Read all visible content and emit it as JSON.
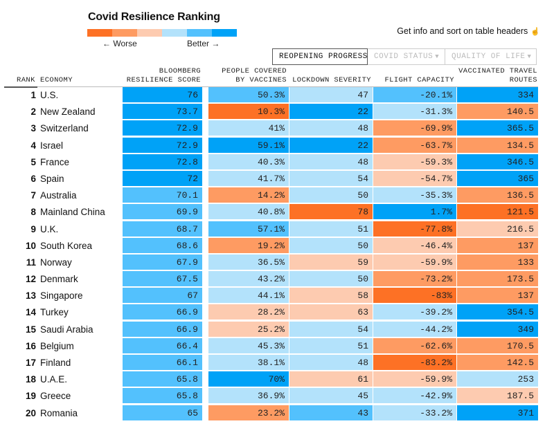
{
  "title": "Covid Resilience Ranking",
  "legend": {
    "colors": [
      "#fd7125",
      "#fe9b62",
      "#fdcbb0",
      "#b3e2fb",
      "#53c1fd",
      "#00a2f7"
    ],
    "worse_label": "← Worse",
    "better_label": "Better →"
  },
  "hint": {
    "text": "Get info and sort on table headers",
    "icon": "pointer-hand-icon"
  },
  "tabs": [
    {
      "label": "REOPENING PROGRESS",
      "active": true
    },
    {
      "label": "COVID STATUS",
      "active": false,
      "icon": "▼"
    },
    {
      "label": "QUALITY OF LIFE",
      "active": false,
      "icon": "▼"
    }
  ],
  "columns": {
    "rank": "RANK",
    "economy": "ECONOMY",
    "score_line1": "BLOOMBERG",
    "score_line2": "RESILIENCE SCORE",
    "vacc_line1": "PEOPLE COVERED",
    "vacc_line2": "BY VACCINES",
    "lockdown": "LOCKDOWN SEVERITY",
    "flight": "FLIGHT CAPACITY",
    "routes_line1": "VACCINATED TRAVEL",
    "routes_line2": "ROUTES"
  },
  "palette": {
    "o3": "#fd7125",
    "o2": "#fe9b62",
    "o1": "#fdcbb0",
    "b1": "#b3e2fb",
    "b2": "#53c1fd",
    "b3": "#00a2f7"
  },
  "rows": [
    {
      "rank": "1",
      "economy": "U.S.",
      "score": "76",
      "score_c": "b3",
      "vacc": "50.3%",
      "vacc_c": "b2",
      "lock": "47",
      "lock_c": "b1",
      "flight": "-20.1%",
      "flight_c": "b2",
      "routes": "334",
      "routes_c": "b3"
    },
    {
      "rank": "2",
      "economy": "New Zealand",
      "score": "73.7",
      "score_c": "b3",
      "vacc": "10.3%",
      "vacc_c": "o3",
      "lock": "22",
      "lock_c": "b3",
      "flight": "-31.3%",
      "flight_c": "b1",
      "routes": "140.5",
      "routes_c": "o2"
    },
    {
      "rank": "3",
      "economy": "Switzerland",
      "score": "72.9",
      "score_c": "b3",
      "vacc": "41%",
      "vacc_c": "b1",
      "lock": "48",
      "lock_c": "b1",
      "flight": "-69.9%",
      "flight_c": "o2",
      "routes": "365.5",
      "routes_c": "b3"
    },
    {
      "rank": "4",
      "economy": "Israel",
      "score": "72.9",
      "score_c": "b3",
      "vacc": "59.1%",
      "vacc_c": "b3",
      "lock": "22",
      "lock_c": "b3",
      "flight": "-63.7%",
      "flight_c": "o2",
      "routes": "134.5",
      "routes_c": "o2"
    },
    {
      "rank": "5",
      "economy": "France",
      "score": "72.8",
      "score_c": "b3",
      "vacc": "40.3%",
      "vacc_c": "b1",
      "lock": "48",
      "lock_c": "b1",
      "flight": "-59.3%",
      "flight_c": "o1",
      "routes": "346.5",
      "routes_c": "b3"
    },
    {
      "rank": "6",
      "economy": "Spain",
      "score": "72",
      "score_c": "b3",
      "vacc": "41.7%",
      "vacc_c": "b1",
      "lock": "54",
      "lock_c": "b1",
      "flight": "-54.7%",
      "flight_c": "o1",
      "routes": "365",
      "routes_c": "b3"
    },
    {
      "rank": "7",
      "economy": "Australia",
      "score": "70.1",
      "score_c": "b2",
      "vacc": "14.2%",
      "vacc_c": "o2",
      "lock": "50",
      "lock_c": "b1",
      "flight": "-35.3%",
      "flight_c": "b1",
      "routes": "136.5",
      "routes_c": "o2"
    },
    {
      "rank": "8",
      "economy": "Mainland China",
      "score": "69.9",
      "score_c": "b2",
      "vacc": "40.8%",
      "vacc_c": "b1",
      "lock": "78",
      "lock_c": "o3",
      "flight": "1.7%",
      "flight_c": "b3",
      "routes": "121.5",
      "routes_c": "o3"
    },
    {
      "rank": "9",
      "economy": "U.K.",
      "score": "68.7",
      "score_c": "b2",
      "vacc": "57.1%",
      "vacc_c": "b2",
      "lock": "51",
      "lock_c": "b1",
      "flight": "-77.8%",
      "flight_c": "o3",
      "routes": "216.5",
      "routes_c": "o1"
    },
    {
      "rank": "10",
      "economy": "South Korea",
      "score": "68.6",
      "score_c": "b2",
      "vacc": "19.2%",
      "vacc_c": "o2",
      "lock": "50",
      "lock_c": "b1",
      "flight": "-46.4%",
      "flight_c": "o1",
      "routes": "137",
      "routes_c": "o2"
    },
    {
      "rank": "11",
      "economy": "Norway",
      "score": "67.9",
      "score_c": "b2",
      "vacc": "36.5%",
      "vacc_c": "b1",
      "lock": "59",
      "lock_c": "o1",
      "flight": "-59.9%",
      "flight_c": "o1",
      "routes": "133",
      "routes_c": "o2"
    },
    {
      "rank": "12",
      "economy": "Denmark",
      "score": "67.5",
      "score_c": "b2",
      "vacc": "43.2%",
      "vacc_c": "b1",
      "lock": "50",
      "lock_c": "b1",
      "flight": "-73.2%",
      "flight_c": "o2",
      "routes": "173.5",
      "routes_c": "o2"
    },
    {
      "rank": "13",
      "economy": "Singapore",
      "score": "67",
      "score_c": "b2",
      "vacc": "44.1%",
      "vacc_c": "b1",
      "lock": "58",
      "lock_c": "o1",
      "flight": "-83%",
      "flight_c": "o3",
      "routes": "137",
      "routes_c": "o2"
    },
    {
      "rank": "14",
      "economy": "Turkey",
      "score": "66.9",
      "score_c": "b2",
      "vacc": "28.2%",
      "vacc_c": "o1",
      "lock": "63",
      "lock_c": "o1",
      "flight": "-39.2%",
      "flight_c": "b1",
      "routes": "354.5",
      "routes_c": "b3"
    },
    {
      "rank": "15",
      "economy": "Saudi Arabia",
      "score": "66.9",
      "score_c": "b2",
      "vacc": "25.2%",
      "vacc_c": "o1",
      "lock": "54",
      "lock_c": "b1",
      "flight": "-44.2%",
      "flight_c": "b1",
      "routes": "349",
      "routes_c": "b3"
    },
    {
      "rank": "16",
      "economy": "Belgium",
      "score": "66.4",
      "score_c": "b2",
      "vacc": "45.3%",
      "vacc_c": "b1",
      "lock": "51",
      "lock_c": "b1",
      "flight": "-62.6%",
      "flight_c": "o2",
      "routes": "170.5",
      "routes_c": "o2"
    },
    {
      "rank": "17",
      "economy": "Finland",
      "score": "66.1",
      "score_c": "b2",
      "vacc": "38.1%",
      "vacc_c": "b1",
      "lock": "48",
      "lock_c": "b1",
      "flight": "-83.2%",
      "flight_c": "o3",
      "routes": "142.5",
      "routes_c": "o2"
    },
    {
      "rank": "18",
      "economy": "U.A.E.",
      "score": "65.8",
      "score_c": "b2",
      "vacc": "70%",
      "vacc_c": "b3",
      "lock": "61",
      "lock_c": "o1",
      "flight": "-59.9%",
      "flight_c": "o1",
      "routes": "253",
      "routes_c": "b1"
    },
    {
      "rank": "19",
      "economy": "Greece",
      "score": "65.8",
      "score_c": "b2",
      "vacc": "36.9%",
      "vacc_c": "b1",
      "lock": "45",
      "lock_c": "b1",
      "flight": "-42.9%",
      "flight_c": "b1",
      "routes": "187.5",
      "routes_c": "o1"
    },
    {
      "rank": "20",
      "economy": "Romania",
      "score": "65",
      "score_c": "b2",
      "vacc": "23.2%",
      "vacc_c": "o2",
      "lock": "43",
      "lock_c": "b2",
      "flight": "-33.2%",
      "flight_c": "b1",
      "routes": "371",
      "routes_c": "b3"
    }
  ]
}
